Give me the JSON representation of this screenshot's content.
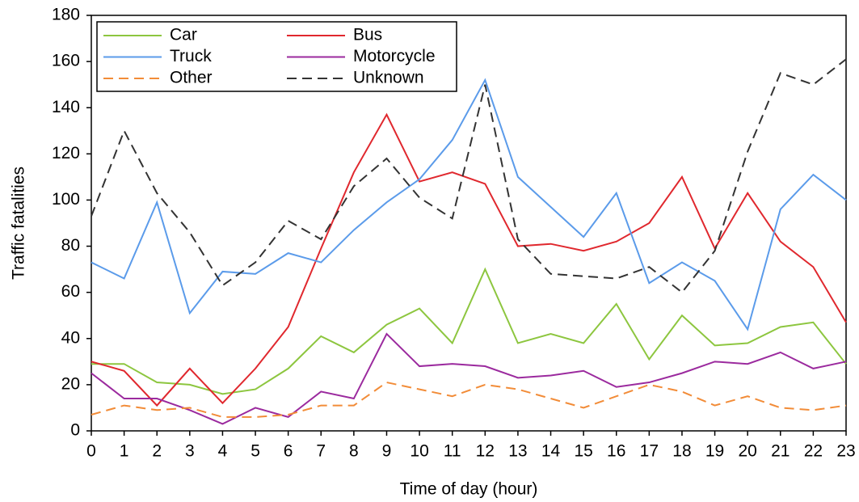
{
  "chart_data": {
    "type": "line",
    "xlabel": "Time of day (hour)",
    "ylabel": "Traffic fatalities",
    "x": [
      0,
      1,
      2,
      3,
      4,
      5,
      6,
      7,
      8,
      9,
      10,
      11,
      12,
      13,
      14,
      15,
      16,
      17,
      18,
      19,
      20,
      21,
      22,
      23
    ],
    "xlim": [
      0,
      23
    ],
    "xticks": [
      0,
      1,
      2,
      3,
      4,
      5,
      6,
      7,
      8,
      9,
      10,
      11,
      12,
      13,
      14,
      15,
      16,
      17,
      18,
      19,
      20,
      21,
      22,
      23
    ],
    "ylim": [
      0,
      180
    ],
    "yticks": [
      0,
      20,
      40,
      60,
      80,
      100,
      120,
      140,
      160,
      180
    ],
    "legend": "upper left",
    "series": [
      {
        "name": "Car",
        "color": "#8dc63f",
        "dashed": false,
        "values": [
          29,
          29,
          21,
          20,
          16,
          18,
          27,
          41,
          34,
          46,
          53,
          38,
          70,
          38,
          42,
          38,
          55,
          31,
          50,
          37,
          38,
          45,
          47,
          29
        ]
      },
      {
        "name": "Bus",
        "color": "#e0282e",
        "dashed": false,
        "values": [
          30,
          26,
          11,
          27,
          12,
          27,
          45,
          79,
          112,
          137,
          108,
          112,
          107,
          80,
          81,
          78,
          82,
          90,
          110,
          79,
          103,
          82,
          71,
          47
        ]
      },
      {
        "name": "Truck",
        "color": "#5b9bea",
        "dashed": false,
        "values": [
          73,
          66,
          99,
          51,
          69,
          68,
          77,
          73,
          87,
          99,
          109,
          126,
          152,
          110,
          97,
          84,
          103,
          64,
          73,
          65,
          44,
          96,
          111,
          100
        ]
      },
      {
        "name": "Motorcycle",
        "color": "#9b2a9e",
        "dashed": false,
        "values": [
          25,
          14,
          14,
          9,
          3,
          10,
          6,
          17,
          14,
          42,
          28,
          29,
          28,
          23,
          24,
          26,
          19,
          21,
          25,
          30,
          29,
          34,
          27,
          30
        ]
      },
      {
        "name": "Other",
        "color": "#f28c38",
        "dashed": true,
        "values": [
          7,
          11,
          9,
          10,
          6,
          6,
          7,
          11,
          11,
          21,
          18,
          15,
          20,
          18,
          14,
          10,
          15,
          20,
          17,
          11,
          15,
          10,
          9,
          11
        ]
      },
      {
        "name": "Unknown",
        "color": "#333333",
        "dashed": true,
        "values": [
          93,
          130,
          103,
          86,
          63,
          73,
          91,
          83,
          106,
          118,
          101,
          92,
          150,
          83,
          68,
          67,
          66,
          71,
          60,
          78,
          121,
          155,
          150,
          161
        ]
      }
    ]
  }
}
